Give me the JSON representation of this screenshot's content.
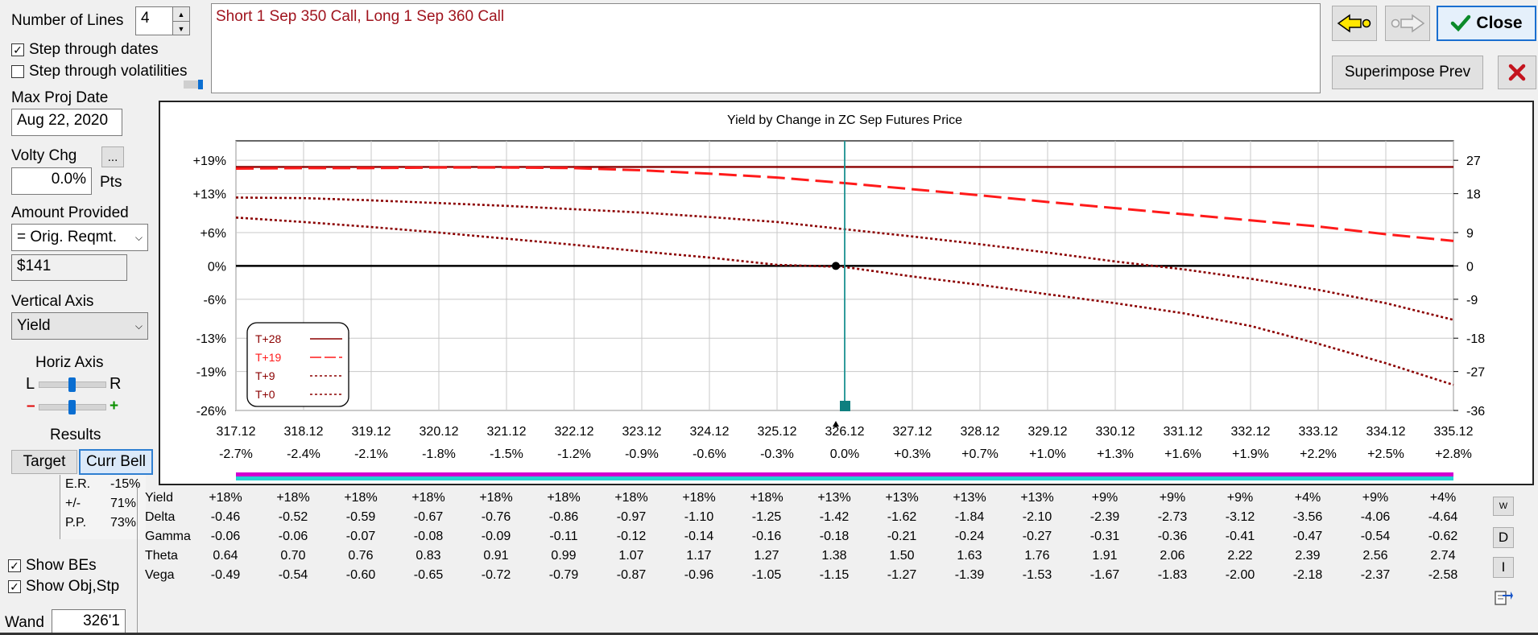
{
  "controls": {
    "number_of_lines_label": "Number of Lines",
    "number_of_lines_value": "4",
    "step_dates_label": "Step through dates",
    "step_dates_checked": true,
    "step_vols_label": "Step through volatilities",
    "step_vols_checked": false,
    "max_proj_date_label": "Max Proj Date",
    "max_proj_date_value": "Aug 22, 2020",
    "volty_chg_label": "Volty Chg",
    "volty_chg_button": "...",
    "volty_chg_value": "0.0%",
    "volty_units": "Pts",
    "amount_provided_label": "Amount Provided",
    "amount_provided_value": "= Orig. Reqmt.",
    "amount_value": "$141",
    "vertical_axis_label": "Vertical Axis",
    "vertical_axis_value": "Yield",
    "horiz_axis_label": "Horiz Axis",
    "horiz_left": "L",
    "horiz_right": "R",
    "minus": "–",
    "plus": "+",
    "results_label": "Results",
    "target_label": "Target",
    "curr_bell_label": "Curr Bell",
    "results": [
      {
        "k": "E.R.",
        "v": "-15%"
      },
      {
        "k": "+/-",
        "v": "71%"
      },
      {
        "k": "P.P.",
        "v": "73%"
      }
    ],
    "show_bes_label": "Show BEs",
    "show_bes_checked": true,
    "show_obj_label": "Show Obj,Stp",
    "show_obj_checked": true,
    "wand_label": "Wand",
    "wand_value": "326'1"
  },
  "description": "Short 1 Sep 350 Call, Long 1 Sep 360 Call",
  "toolbar": {
    "close_label": "Close",
    "superimpose_label": "Superimpose Prev"
  },
  "side_buttons": {
    "w": "W",
    "d": "D",
    "i": "I"
  },
  "colors": {
    "dark_red": "#8b0000",
    "red": "#ff1a1a",
    "teal": "#1a9090",
    "magenta": "#d000d0",
    "cyan": "#22d4d4",
    "title_red": "#a00000"
  },
  "chart_data": {
    "type": "line",
    "title": "Yield by Change in ZC Sep Futures Price",
    "x": [
      317.12,
      318.12,
      319.12,
      320.12,
      321.12,
      322.12,
      323.12,
      324.12,
      325.12,
      326.12,
      327.12,
      328.12,
      329.12,
      330.12,
      331.12,
      332.12,
      333.12,
      334.12,
      335.12
    ],
    "x_tick_labels": [
      "317.12",
      "318.12",
      "319.12",
      "320.12",
      "321.12",
      "322.12",
      "323.12",
      "324.12",
      "325.12",
      "326.12",
      "327.12",
      "328.12",
      "329.12",
      "330.12",
      "331.12",
      "332.12",
      "333.12",
      "334.12",
      "335.12"
    ],
    "x_pct_labels": [
      "-2.7%",
      "-2.4%",
      "-2.1%",
      "-1.8%",
      "-1.5%",
      "-1.2%",
      "-0.9%",
      "-0.6%",
      "-0.3%",
      "0.0%",
      "+0.3%",
      "+0.7%",
      "+1.0%",
      "+1.3%",
      "+1.6%",
      "+1.9%",
      "+2.2%",
      "+2.5%",
      "+2.8%"
    ],
    "y_left_ticks": [
      {
        "v": 19,
        "label": "+19%"
      },
      {
        "v": 13,
        "label": "+13%"
      },
      {
        "v": 6,
        "label": "+6%"
      },
      {
        "v": 0,
        "label": "0%"
      },
      {
        "v": -6,
        "label": "-6%"
      },
      {
        "v": -13,
        "label": "-13%"
      },
      {
        "v": -19,
        "label": "-19%"
      },
      {
        "v": -26,
        "label": "-26%"
      }
    ],
    "y_right_ticks": [
      {
        "v": 19,
        "label": "27"
      },
      {
        "v": 13,
        "label": "18"
      },
      {
        "v": 6,
        "label": "9"
      },
      {
        "v": 0,
        "label": "0"
      },
      {
        "v": -6,
        "label": "-9"
      },
      {
        "v": -13,
        "label": "-18"
      },
      {
        "v": -19,
        "label": "-27"
      },
      {
        "v": -26,
        "label": "-36"
      }
    ],
    "ylim": [
      -26,
      22.5
    ],
    "current_price": 326.12,
    "current_yield": 0,
    "series": [
      {
        "name": "T+28",
        "style": "solid",
        "color": "#8b0000",
        "values": [
          17.8,
          17.8,
          17.8,
          17.8,
          17.8,
          17.8,
          17.8,
          17.8,
          17.8,
          17.8,
          17.8,
          17.8,
          17.8,
          17.8,
          17.8,
          17.8,
          17.8,
          17.8,
          17.8
        ]
      },
      {
        "name": "T+19",
        "style": "dash",
        "color": "#ff1a1a",
        "values": [
          17.5,
          17.6,
          17.6,
          17.7,
          17.7,
          17.6,
          17.2,
          16.6,
          15.9,
          14.9,
          13.8,
          12.7,
          11.5,
          10.4,
          9.3,
          8.2,
          7.1,
          5.7,
          4.5
        ]
      },
      {
        "name": "T+9",
        "style": "dot",
        "color": "#8b0000",
        "values": [
          12.3,
          12.2,
          11.8,
          11.3,
          10.8,
          10.2,
          9.6,
          8.8,
          7.9,
          6.6,
          5.3,
          3.9,
          2.4,
          0.8,
          -0.6,
          -2.3,
          -4.3,
          -6.7,
          -9.7
        ]
      },
      {
        "name": "T+0",
        "style": "dot",
        "color": "#8b0000",
        "values": [
          8.7,
          7.9,
          7.0,
          6.0,
          4.9,
          3.8,
          2.6,
          1.5,
          0.2,
          -0.2,
          -1.9,
          -3.4,
          -5.1,
          -6.7,
          -8.5,
          -10.8,
          -14.0,
          -17.5,
          -21.4
        ]
      }
    ]
  },
  "greeks": {
    "rows": [
      {
        "label": "Yield",
        "values": [
          "+18%",
          "+18%",
          "+18%",
          "+18%",
          "+18%",
          "+18%",
          "+18%",
          "+18%",
          "+18%",
          "+13%",
          "+13%",
          "+13%",
          "+13%",
          "+9%",
          "+9%",
          "+9%",
          "+4%",
          "+9%",
          "+4%"
        ]
      },
      {
        "label": "Delta",
        "values": [
          "-0.46",
          "-0.52",
          "-0.59",
          "-0.67",
          "-0.76",
          "-0.86",
          "-0.97",
          "-1.10",
          "-1.25",
          "-1.42",
          "-1.62",
          "-1.84",
          "-2.10",
          "-2.39",
          "-2.73",
          "-3.12",
          "-3.56",
          "-4.06",
          "-4.64"
        ]
      },
      {
        "label": "Gamma",
        "values": [
          "-0.06",
          "-0.06",
          "-0.07",
          "-0.08",
          "-0.09",
          "-0.11",
          "-0.12",
          "-0.14",
          "-0.16",
          "-0.18",
          "-0.21",
          "-0.24",
          "-0.27",
          "-0.31",
          "-0.36",
          "-0.41",
          "-0.47",
          "-0.54",
          "-0.62"
        ]
      },
      {
        "label": "Theta",
        "values": [
          "0.64",
          "0.70",
          "0.76",
          "0.83",
          "0.91",
          "0.99",
          "1.07",
          "1.17",
          "1.27",
          "1.38",
          "1.50",
          "1.63",
          "1.76",
          "1.91",
          "2.06",
          "2.22",
          "2.39",
          "2.56",
          "2.74"
        ]
      },
      {
        "label": "Vega",
        "values": [
          "-0.49",
          "-0.54",
          "-0.60",
          "-0.65",
          "-0.72",
          "-0.79",
          "-0.87",
          "-0.96",
          "-1.05",
          "-1.15",
          "-1.27",
          "-1.39",
          "-1.53",
          "-1.67",
          "-1.83",
          "-2.00",
          "-2.18",
          "-2.37",
          "-2.58"
        ]
      }
    ]
  }
}
